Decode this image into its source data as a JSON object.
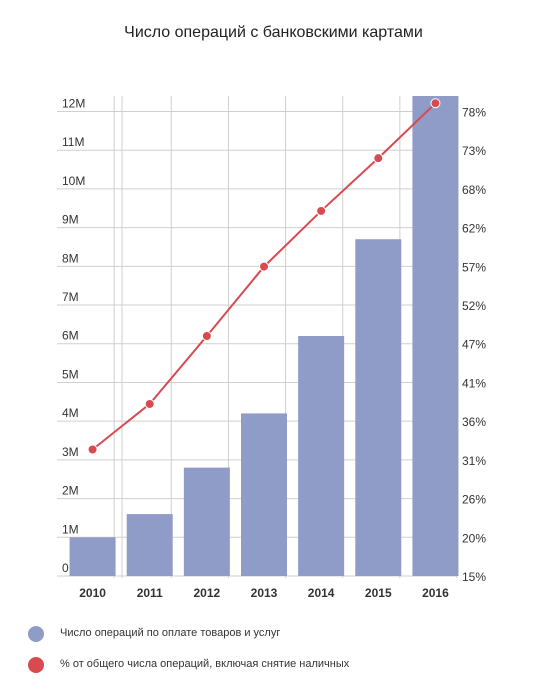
{
  "chart_data": {
    "type": "bar",
    "title": "Число операций с банковскими картами",
    "categories": [
      "2010",
      "2011",
      "2012",
      "2013",
      "2014",
      "2015",
      "2016"
    ],
    "series": [
      {
        "name": "Число операций по оплате товаров и услуг",
        "kind": "bar",
        "axis": "left",
        "color": "#8f9cc7",
        "values": [
          1.0,
          1.6,
          2.8,
          4.2,
          6.2,
          8.7,
          12.4
        ]
      },
      {
        "name": "% от общего числа операций, включая снятие наличных",
        "kind": "line",
        "axis": "right",
        "color": "#d84a4f",
        "values": [
          32.5,
          38.8,
          48.2,
          57.8,
          65.5,
          72.8,
          80.4
        ]
      }
    ],
    "y_left": {
      "ticks": [
        0,
        1,
        2,
        3,
        4,
        5,
        6,
        7,
        8,
        9,
        10,
        11,
        12
      ],
      "tick_labels": [
        "0",
        "1M",
        "2M",
        "3M",
        "4M",
        "5M",
        "6M",
        "7M",
        "8M",
        "9M",
        "10M",
        "11M",
        "12M"
      ],
      "range": [
        0,
        12.4
      ]
    },
    "y_right": {
      "ticks": [
        15,
        20,
        26,
        31,
        36,
        41,
        47,
        52,
        57,
        62,
        68,
        73,
        78
      ],
      "tick_labels": [
        "15%",
        "20%",
        "26%",
        "31%",
        "36%",
        "41%",
        "47%",
        "52%",
        "57%",
        "62%",
        "68%",
        "73%",
        "78%"
      ],
      "range": [
        15,
        81.4
      ]
    },
    "grid": true,
    "legend_position": "bottom-left"
  }
}
